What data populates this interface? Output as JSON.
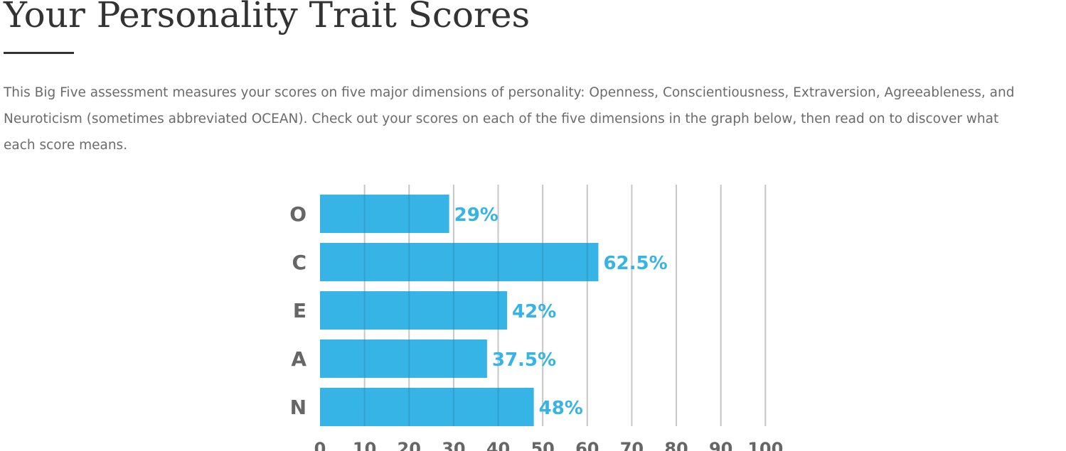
{
  "header": {
    "title": "Your Personality Trait Scores",
    "intro": "This Big Five assessment measures your scores on five major dimensions of personality: Openness, Conscientiousness, Extraversion, Agreeableness, and Neuroticism (sometimes abbreviated OCEAN). Check out your scores on each of the five dimensions in the graph below, then read on to discover what each score means."
  },
  "colors": {
    "bar": "#36b4e5",
    "value_label": "#36b4e5",
    "category_label": "#666666",
    "grid": "#dddddd",
    "text": "#333333"
  },
  "chart_data": {
    "type": "bar",
    "orientation": "horizontal",
    "categories": [
      "O",
      "C",
      "E",
      "A",
      "N"
    ],
    "values": [
      29,
      62.5,
      42,
      37.5,
      48
    ],
    "value_labels": [
      "29%",
      "62.5%",
      "42%",
      "37.5%",
      "48%"
    ],
    "x_ticks": [
      0,
      10,
      20,
      30,
      40,
      50,
      60,
      70,
      80,
      90,
      100
    ],
    "xlim": [
      0,
      100
    ],
    "grid": true,
    "legend": false
  }
}
